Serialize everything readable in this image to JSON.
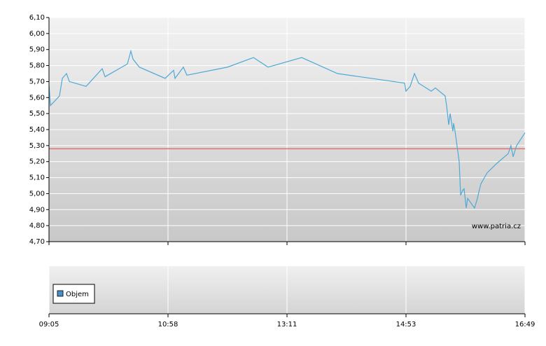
{
  "chart_data": {
    "type": "line",
    "x": [
      0,
      0.012,
      0.088,
      0.112,
      0.147,
      0.171,
      0.312,
      0.447,
      0.471,
      0.659,
      0.688,
      0.706,
      0.759,
      0.976,
      1.047,
      1.059,
      1.129,
      1.159,
      1.5,
      1.718,
      1.841,
      2.124,
      2.424,
      2.988,
      3.0,
      3.035,
      3.071,
      3.106,
      3.212,
      3.247,
      3.329,
      3.341,
      3.359,
      3.371,
      3.394,
      3.4,
      3.412,
      3.447,
      3.459,
      3.476,
      3.488,
      3.506,
      3.518,
      3.576,
      3.6,
      3.612,
      3.629,
      3.682,
      3.765,
      3.859,
      3.882,
      3.9,
      3.929,
      4
    ],
    "series": [
      {
        "color": "#4fa9d6",
        "values": [
          5.68,
          5.55,
          5.61,
          5.72,
          5.75,
          5.7,
          5.67,
          5.78,
          5.73,
          5.81,
          5.89,
          5.84,
          5.79,
          5.72,
          5.77,
          5.72,
          5.79,
          5.74,
          5.79,
          5.85,
          5.79,
          5.85,
          5.75,
          5.69,
          5.64,
          5.67,
          5.75,
          5.69,
          5.64,
          5.66,
          5.61,
          5.55,
          5.43,
          5.5,
          5.39,
          5.44,
          5.39,
          5.2,
          4.99,
          5.02,
          5.03,
          4.91,
          4.97,
          4.91,
          4.97,
          5.01,
          5.06,
          5.13,
          5.19,
          5.25,
          5.3,
          5.23,
          5.3,
          5.38
        ]
      }
    ],
    "xlim": [
      0,
      4
    ],
    "xticks": [
      {
        "value": 0,
        "label": "09:05"
      },
      {
        "value": 1,
        "label": "10:58"
      },
      {
        "value": 2,
        "label": "13:11"
      },
      {
        "value": 3,
        "label": "14:53"
      },
      {
        "value": 4,
        "label": "16:49"
      }
    ],
    "ylim": [
      4.7,
      6.1
    ],
    "yticks": [
      {
        "value": 4.7,
        "label": "4,70"
      },
      {
        "value": 4.8,
        "label": "4,80"
      },
      {
        "value": 4.9,
        "label": "4,90"
      },
      {
        "value": 5.0,
        "label": "5,00"
      },
      {
        "value": 5.1,
        "label": "5,10"
      },
      {
        "value": 5.2,
        "label": "5,20"
      },
      {
        "value": 5.3,
        "label": "5,30"
      },
      {
        "value": 5.4,
        "label": "5,40"
      },
      {
        "value": 5.5,
        "label": "5,50"
      },
      {
        "value": 5.6,
        "label": "5,60"
      },
      {
        "value": 5.7,
        "label": "5,70"
      },
      {
        "value": 5.8,
        "label": "5,80"
      },
      {
        "value": 5.9,
        "label": "5,90"
      },
      {
        "value": 6.0,
        "label": "6,00"
      },
      {
        "value": 6.1,
        "label": "6,10"
      }
    ],
    "grid": true,
    "reference_line": {
      "value": 5.28,
      "color": "#e0736a"
    },
    "watermark": "www.patria.cz",
    "volume_legend": {
      "label": "Objem",
      "color": "#4a90c8"
    }
  }
}
